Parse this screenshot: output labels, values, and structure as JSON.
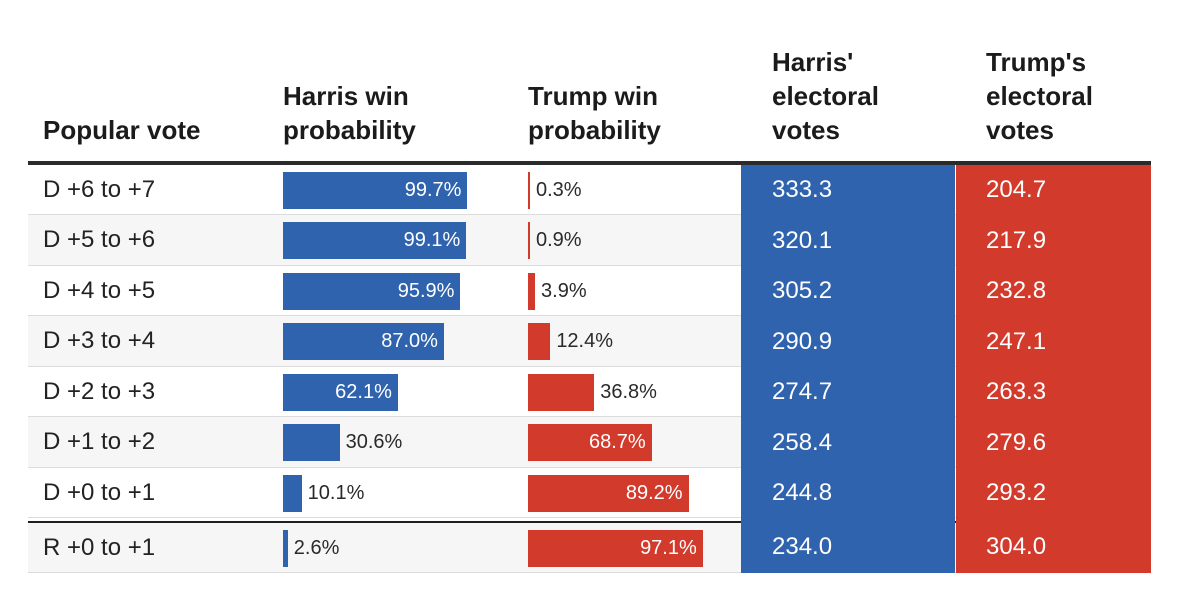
{
  "headers": {
    "popular_vote": "Popular vote",
    "harris_prob": "Harris win\nprobability",
    "trump_prob": "Trump win\nprobability",
    "harris_ev": "Harris'\nelectoral\nvotes",
    "trump_ev": "Trump's\nelectoral\nvotes"
  },
  "colors": {
    "harris": "#2f63ad",
    "trump": "#d23a2b"
  },
  "chart_data": {
    "type": "table",
    "columns": [
      "Popular vote",
      "Harris win probability",
      "Trump win probability",
      "Harris' electoral votes",
      "Trump's electoral votes"
    ],
    "rows": [
      {
        "label": "D +6 to +7",
        "harris_prob": 99.7,
        "harris_prob_text": "99.7%",
        "trump_prob": 0.3,
        "trump_prob_text": "0.3%",
        "harris_ev": "333.3",
        "trump_ev": "204.7"
      },
      {
        "label": "D +5 to +6",
        "harris_prob": 99.1,
        "harris_prob_text": "99.1%",
        "trump_prob": 0.9,
        "trump_prob_text": "0.9%",
        "harris_ev": "320.1",
        "trump_ev": "217.9"
      },
      {
        "label": "D +4 to +5",
        "harris_prob": 95.9,
        "harris_prob_text": "95.9%",
        "trump_prob": 3.9,
        "trump_prob_text": "3.9%",
        "harris_ev": "305.2",
        "trump_ev": "232.8"
      },
      {
        "label": "D +3 to +4",
        "harris_prob": 87.0,
        "harris_prob_text": "87.0%",
        "trump_prob": 12.4,
        "trump_prob_text": "12.4%",
        "harris_ev": "290.9",
        "trump_ev": "247.1"
      },
      {
        "label": "D +2 to +3",
        "harris_prob": 62.1,
        "harris_prob_text": "62.1%",
        "trump_prob": 36.8,
        "trump_prob_text": "36.8%",
        "harris_ev": "274.7",
        "trump_ev": "263.3"
      },
      {
        "label": "D +1 to +2",
        "harris_prob": 30.6,
        "harris_prob_text": "30.6%",
        "trump_prob": 68.7,
        "trump_prob_text": "68.7%",
        "harris_ev": "258.4",
        "trump_ev": "279.6"
      },
      {
        "label": "D +0 to +1",
        "harris_prob": 10.1,
        "harris_prob_text": "10.1%",
        "trump_prob": 89.2,
        "trump_prob_text": "89.2%",
        "harris_ev": "244.8",
        "trump_ev": "293.2"
      },
      {
        "label": "R +0 to +1",
        "harris_prob": 2.6,
        "harris_prob_text": "2.6%",
        "trump_prob": 97.1,
        "trump_prob_text": "97.1%",
        "harris_ev": "234.0",
        "trump_ev": "304.0"
      }
    ]
  }
}
